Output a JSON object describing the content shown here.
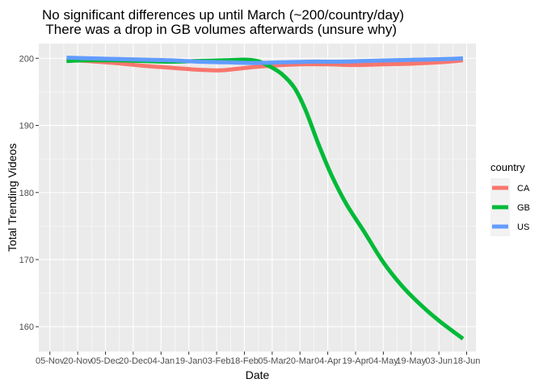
{
  "chart_data": {
    "type": "line",
    "title": "No significant differences up until March (~200/country/day)",
    "subtitle": " There was a drop in GB volumes afterwards (unsure why)",
    "xlabel": "Date",
    "ylabel": "Total Trending Videos",
    "x_tick_labels": [
      "05-Nov",
      "20-Nov",
      "05-Dec",
      "20-Dec",
      "04-Jan",
      "19-Jan",
      "03-Feb",
      "18-Feb",
      "05-Mar",
      "20-Mar",
      "04-Apr",
      "19-Apr",
      "04-May",
      "19-May",
      "03-Jun",
      "18-Jun"
    ],
    "x_tick_days": [
      0,
      15,
      30,
      45,
      60,
      75,
      90,
      105,
      120,
      135,
      150,
      165,
      180,
      195,
      210,
      225
    ],
    "xlim": [
      -6,
      230
    ],
    "y_ticks": [
      160,
      170,
      180,
      190,
      200
    ],
    "ylim": [
      156.3,
      202.2
    ],
    "grid": true,
    "legend": {
      "title": "country",
      "position": "right"
    },
    "series": [
      {
        "name": "CA",
        "color": "#F8766D",
        "x": [
          9,
          20,
          35,
          50,
          65,
          80,
          92,
          100,
          110,
          120,
          135,
          150,
          165,
          180,
          195,
          210,
          223
        ],
        "y": [
          199.8,
          199.6,
          199.3,
          198.9,
          198.6,
          198.3,
          198.2,
          198.4,
          198.7,
          198.9,
          199.1,
          199.1,
          199.0,
          199.1,
          199.2,
          199.4,
          199.7
        ]
      },
      {
        "name": "GB",
        "color": "#00BA38",
        "x": [
          9,
          20,
          35,
          50,
          65,
          80,
          95,
          105,
          112,
          118,
          125,
          132,
          138,
          145,
          152,
          160,
          170,
          180,
          190,
          200,
          210,
          223
        ],
        "y": [
          199.6,
          199.7,
          199.7,
          199.6,
          199.5,
          199.6,
          199.7,
          199.8,
          199.6,
          198.9,
          197.7,
          195.6,
          192.3,
          187.2,
          182.6,
          178.3,
          174.0,
          169.6,
          166.1,
          163.3,
          160.9,
          158.2
        ]
      },
      {
        "name": "US",
        "color": "#619CFF",
        "x": [
          9,
          20,
          35,
          50,
          65,
          80,
          95,
          110,
          125,
          140,
          155,
          170,
          185,
          200,
          215,
          223
        ],
        "y": [
          200.1,
          200.0,
          199.9,
          199.8,
          199.7,
          199.5,
          199.4,
          199.3,
          199.4,
          199.5,
          199.5,
          199.6,
          199.7,
          199.8,
          199.9,
          200.0
        ]
      }
    ]
  }
}
